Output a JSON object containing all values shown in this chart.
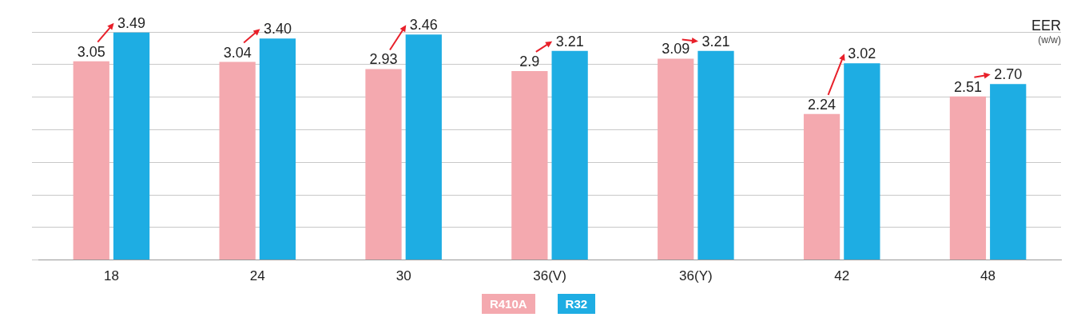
{
  "chart_data": {
    "type": "bar",
    "title": "EER",
    "subtitle": "(w/w)",
    "categories": [
      "18",
      "24",
      "30",
      "36(V)",
      "36(Y)",
      "42",
      "48"
    ],
    "series": [
      {
        "name": "R410A",
        "color": "#f4a9af",
        "values": [
          3.05,
          3.04,
          2.93,
          2.9,
          3.09,
          2.24,
          2.51
        ],
        "value_labels": [
          "3.05",
          "3.04",
          "2.93",
          "2.9",
          "3.09",
          "2.24",
          "2.51"
        ]
      },
      {
        "name": "R32",
        "color": "#1eade3",
        "values": [
          3.49,
          3.4,
          3.46,
          3.21,
          3.21,
          3.02,
          2.7
        ],
        "value_labels": [
          "3.49",
          "3.40",
          "3.46",
          "3.21",
          "3.21",
          "3.02",
          "2.70"
        ]
      }
    ],
    "ylim": [
      0,
      3.5
    ],
    "yticks": [
      {
        "value": 0,
        "label": null
      },
      {
        "value": 0.5,
        "label": null
      },
      {
        "value": 1,
        "label": null
      },
      {
        "value": 1.5,
        "label": null
      },
      {
        "value": 2,
        "label": null
      },
      {
        "value": 2.5,
        "label": null
      },
      {
        "value": 3,
        "label": null
      },
      {
        "value": 3.5,
        "label": null
      }
    ],
    "tick_labels": "x",
    "grid": "y",
    "legend": "bottom"
  }
}
